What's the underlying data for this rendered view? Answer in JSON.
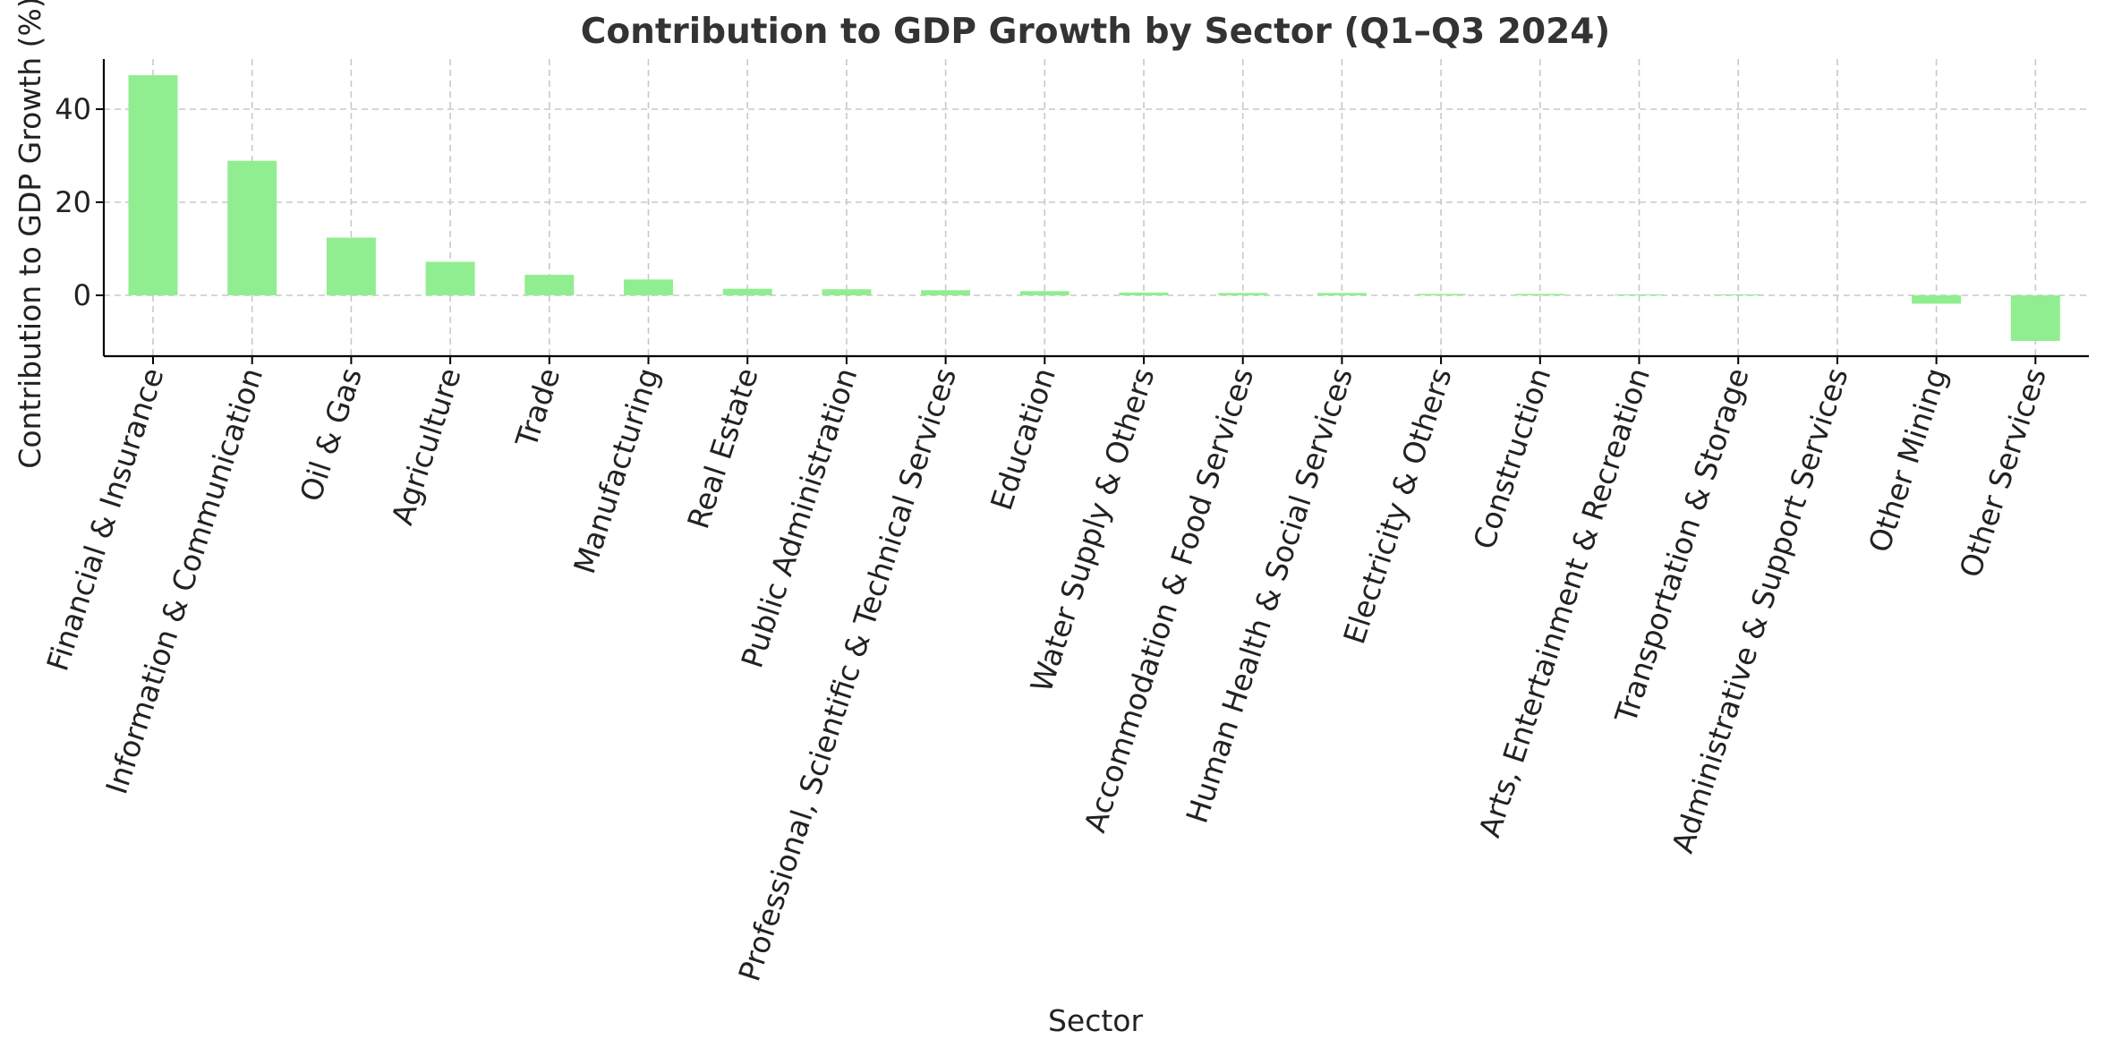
{
  "chart_data": {
    "type": "bar",
    "title": "Contribution to GDP Growth by Sector (Q1–Q3 2024)",
    "xlabel": "Sector",
    "ylabel": "Contribution to GDP Growth (%)",
    "ylim": [
      -13,
      50
    ],
    "yticks": [
      0,
      20,
      40
    ],
    "grid": true,
    "bar_color": "#90EE90",
    "categories": [
      "Financial & Insurance",
      "Information & Communication",
      "Oil & Gas",
      "Agriculture",
      "Trade",
      "Manufacturing",
      "Real Estate",
      "Public Administration",
      "Professional, Scientific & Technical Services",
      "Education",
      "Water Supply & Others",
      "Accommodation & Food Services",
      "Human Health & Social Services",
      "Electricity & Others",
      "Construction",
      "Arts, Entertainment & Recreation",
      "Transportation & Storage",
      "Administrative & Support Services",
      "Other Mining",
      "Other Services"
    ],
    "values": [
      47.3,
      28.9,
      12.4,
      7.2,
      4.4,
      3.4,
      1.4,
      1.3,
      1.1,
      0.9,
      0.6,
      0.5,
      0.5,
      0.3,
      0.3,
      0.2,
      0.2,
      0.0,
      -1.8,
      -9.8
    ]
  }
}
